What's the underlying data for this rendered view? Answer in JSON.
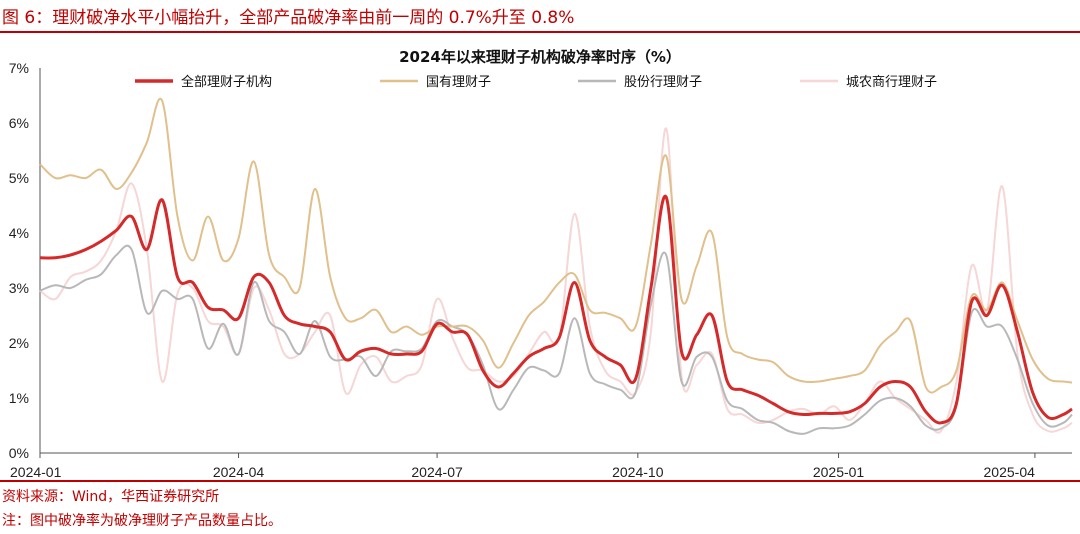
{
  "header": {
    "title": "图 6：理财破净水平小幅抬升，全部产品破净率由前一周的 0.7%升至 0.8%"
  },
  "footer": {
    "source": "资料来源：Wind，华西证券研究所",
    "note": "注：图中破净率为破净理财子产品数量占比。"
  },
  "colors": {
    "accent": "#c00000",
    "all": "#d42a2a",
    "state": "#e0c08c",
    "joint": "#b8b8b8",
    "rural": "#f6d6d6"
  },
  "chart_data": {
    "type": "line",
    "title": "2024年以来理财子机构破净率时序（%）",
    "ylabel": "",
    "xlabel": "",
    "ylim": [
      0,
      7
    ],
    "y_ticks": [
      "0%",
      "1%",
      "2%",
      "3%",
      "4%",
      "5%",
      "6%",
      "7%"
    ],
    "x_ticks": [
      "2024-01",
      "2024-04",
      "2024-07",
      "2024-10",
      "2025-01",
      "2025-04"
    ],
    "xlim": [
      "2024-01-01",
      "2025-04-18"
    ],
    "grid": false,
    "legend_position": "top",
    "series": [
      {
        "name": "全部理财子机构",
        "color": "#d42a2a",
        "points": [
          [
            "2024-01-01",
            3.55
          ],
          [
            "2024-01-08",
            3.55
          ],
          [
            "2024-01-15",
            3.6
          ],
          [
            "2024-01-22",
            3.7
          ],
          [
            "2024-01-29",
            3.85
          ],
          [
            "2024-02-05",
            4.05
          ],
          [
            "2024-02-12",
            4.3
          ],
          [
            "2024-02-19",
            3.7
          ],
          [
            "2024-02-26",
            4.6
          ],
          [
            "2024-03-04",
            3.2
          ],
          [
            "2024-03-11",
            3.1
          ],
          [
            "2024-03-18",
            2.65
          ],
          [
            "2024-03-25",
            2.6
          ],
          [
            "2024-04-01",
            2.45
          ],
          [
            "2024-04-08",
            3.2
          ],
          [
            "2024-04-15",
            3.1
          ],
          [
            "2024-04-22",
            2.5
          ],
          [
            "2024-04-29",
            2.35
          ],
          [
            "2024-05-06",
            2.3
          ],
          [
            "2024-05-13",
            2.2
          ],
          [
            "2024-05-20",
            1.7
          ],
          [
            "2024-05-27",
            1.85
          ],
          [
            "2024-06-03",
            1.9
          ],
          [
            "2024-06-10",
            1.8
          ],
          [
            "2024-06-17",
            1.8
          ],
          [
            "2024-06-24",
            1.85
          ],
          [
            "2024-07-01",
            2.35
          ],
          [
            "2024-07-08",
            2.2
          ],
          [
            "2024-07-15",
            2.15
          ],
          [
            "2024-07-22",
            1.5
          ],
          [
            "2024-07-29",
            1.2
          ],
          [
            "2024-08-05",
            1.45
          ],
          [
            "2024-08-12",
            1.75
          ],
          [
            "2024-08-19",
            1.9
          ],
          [
            "2024-08-26",
            2.1
          ],
          [
            "2024-09-02",
            3.1
          ],
          [
            "2024-09-09",
            2.05
          ],
          [
            "2024-09-16",
            1.75
          ],
          [
            "2024-09-23",
            1.6
          ],
          [
            "2024-09-30",
            1.35
          ],
          [
            "2024-10-07",
            3.0
          ],
          [
            "2024-10-14",
            4.65
          ],
          [
            "2024-10-21",
            1.85
          ],
          [
            "2024-10-28",
            2.15
          ],
          [
            "2024-11-04",
            2.5
          ],
          [
            "2024-11-11",
            1.3
          ],
          [
            "2024-11-18",
            1.15
          ],
          [
            "2024-11-25",
            1.05
          ],
          [
            "2024-12-02",
            0.9
          ],
          [
            "2024-12-09",
            0.75
          ],
          [
            "2024-12-16",
            0.7
          ],
          [
            "2024-12-23",
            0.72
          ],
          [
            "2024-12-30",
            0.72
          ],
          [
            "2025-01-06",
            0.75
          ],
          [
            "2025-01-13",
            0.9
          ],
          [
            "2025-01-20",
            1.2
          ],
          [
            "2025-01-27",
            1.3
          ],
          [
            "2025-02-03",
            1.2
          ],
          [
            "2025-02-10",
            0.75
          ],
          [
            "2025-02-17",
            0.55
          ],
          [
            "2025-02-24",
            0.9
          ],
          [
            "2025-03-03",
            2.75
          ],
          [
            "2025-03-10",
            2.5
          ],
          [
            "2025-03-17",
            3.05
          ],
          [
            "2025-03-24",
            2.2
          ],
          [
            "2025-03-31",
            1.1
          ],
          [
            "2025-04-07",
            0.65
          ],
          [
            "2025-04-14",
            0.7
          ],
          [
            "2025-04-18",
            0.8
          ]
        ]
      },
      {
        "name": "国有理财子",
        "color": "#e0c08c",
        "points": [
          [
            "2024-01-01",
            5.25
          ],
          [
            "2024-01-08",
            5.0
          ],
          [
            "2024-01-15",
            5.05
          ],
          [
            "2024-01-22",
            5.0
          ],
          [
            "2024-01-29",
            5.15
          ],
          [
            "2024-02-05",
            4.8
          ],
          [
            "2024-02-12",
            5.1
          ],
          [
            "2024-02-19",
            5.65
          ],
          [
            "2024-02-26",
            6.4
          ],
          [
            "2024-03-04",
            4.3
          ],
          [
            "2024-03-11",
            3.5
          ],
          [
            "2024-03-18",
            4.3
          ],
          [
            "2024-03-25",
            3.5
          ],
          [
            "2024-04-01",
            3.9
          ],
          [
            "2024-04-08",
            5.3
          ],
          [
            "2024-04-15",
            3.6
          ],
          [
            "2024-04-22",
            3.2
          ],
          [
            "2024-04-29",
            3.0
          ],
          [
            "2024-05-06",
            4.8
          ],
          [
            "2024-05-13",
            3.2
          ],
          [
            "2024-05-20",
            2.45
          ],
          [
            "2024-05-27",
            2.45
          ],
          [
            "2024-06-03",
            2.6
          ],
          [
            "2024-06-10",
            2.2
          ],
          [
            "2024-06-17",
            2.3
          ],
          [
            "2024-06-24",
            2.15
          ],
          [
            "2024-07-01",
            2.3
          ],
          [
            "2024-07-08",
            2.3
          ],
          [
            "2024-07-15",
            2.3
          ],
          [
            "2024-07-22",
            2.05
          ],
          [
            "2024-07-29",
            1.55
          ],
          [
            "2024-08-05",
            2.0
          ],
          [
            "2024-08-12",
            2.5
          ],
          [
            "2024-08-19",
            2.75
          ],
          [
            "2024-08-26",
            3.1
          ],
          [
            "2024-09-02",
            3.25
          ],
          [
            "2024-09-09",
            2.6
          ],
          [
            "2024-09-16",
            2.55
          ],
          [
            "2024-09-23",
            2.45
          ],
          [
            "2024-09-30",
            2.3
          ],
          [
            "2024-10-07",
            3.8
          ],
          [
            "2024-10-14",
            5.4
          ],
          [
            "2024-10-21",
            2.8
          ],
          [
            "2024-10-28",
            3.4
          ],
          [
            "2024-11-04",
            4.0
          ],
          [
            "2024-11-11",
            2.1
          ],
          [
            "2024-11-18",
            1.8
          ],
          [
            "2024-11-25",
            1.7
          ],
          [
            "2024-12-02",
            1.65
          ],
          [
            "2024-12-09",
            1.4
          ],
          [
            "2024-12-16",
            1.3
          ],
          [
            "2024-12-23",
            1.3
          ],
          [
            "2024-12-30",
            1.35
          ],
          [
            "2025-01-06",
            1.4
          ],
          [
            "2025-01-13",
            1.5
          ],
          [
            "2025-01-20",
            1.95
          ],
          [
            "2025-01-27",
            2.2
          ],
          [
            "2025-02-03",
            2.4
          ],
          [
            "2025-02-10",
            1.2
          ],
          [
            "2025-02-17",
            1.2
          ],
          [
            "2025-02-24",
            1.5
          ],
          [
            "2025-03-03",
            2.85
          ],
          [
            "2025-03-10",
            2.6
          ],
          [
            "2025-03-17",
            3.1
          ],
          [
            "2025-03-24",
            2.4
          ],
          [
            "2025-03-31",
            1.7
          ],
          [
            "2025-04-07",
            1.35
          ],
          [
            "2025-04-14",
            1.3
          ],
          [
            "2025-04-18",
            1.28
          ]
        ]
      },
      {
        "name": "股份行理财子",
        "color": "#b8b8b8",
        "points": [
          [
            "2024-01-01",
            2.95
          ],
          [
            "2024-01-08",
            3.05
          ],
          [
            "2024-01-15",
            3.0
          ],
          [
            "2024-01-22",
            3.15
          ],
          [
            "2024-01-29",
            3.25
          ],
          [
            "2024-02-05",
            3.6
          ],
          [
            "2024-02-12",
            3.7
          ],
          [
            "2024-02-19",
            2.55
          ],
          [
            "2024-02-26",
            2.95
          ],
          [
            "2024-03-04",
            2.8
          ],
          [
            "2024-03-11",
            2.8
          ],
          [
            "2024-03-18",
            1.9
          ],
          [
            "2024-03-25",
            2.35
          ],
          [
            "2024-04-01",
            1.8
          ],
          [
            "2024-04-08",
            3.1
          ],
          [
            "2024-04-15",
            2.4
          ],
          [
            "2024-04-22",
            2.2
          ],
          [
            "2024-04-29",
            1.8
          ],
          [
            "2024-05-06",
            2.4
          ],
          [
            "2024-05-13",
            1.75
          ],
          [
            "2024-05-20",
            1.7
          ],
          [
            "2024-05-27",
            1.75
          ],
          [
            "2024-06-03",
            1.4
          ],
          [
            "2024-06-10",
            1.85
          ],
          [
            "2024-06-17",
            1.85
          ],
          [
            "2024-06-24",
            1.9
          ],
          [
            "2024-07-01",
            2.4
          ],
          [
            "2024-07-08",
            2.3
          ],
          [
            "2024-07-15",
            2.15
          ],
          [
            "2024-07-22",
            1.6
          ],
          [
            "2024-07-29",
            0.8
          ],
          [
            "2024-08-05",
            1.15
          ],
          [
            "2024-08-12",
            1.55
          ],
          [
            "2024-08-19",
            1.5
          ],
          [
            "2024-08-26",
            1.45
          ],
          [
            "2024-09-02",
            2.45
          ],
          [
            "2024-09-09",
            1.45
          ],
          [
            "2024-09-16",
            1.25
          ],
          [
            "2024-09-23",
            1.15
          ],
          [
            "2024-09-30",
            1.1
          ],
          [
            "2024-10-07",
            2.7
          ],
          [
            "2024-10-14",
            3.6
          ],
          [
            "2024-10-21",
            1.3
          ],
          [
            "2024-10-28",
            1.75
          ],
          [
            "2024-11-04",
            1.75
          ],
          [
            "2024-11-11",
            0.95
          ],
          [
            "2024-11-18",
            0.8
          ],
          [
            "2024-11-25",
            0.6
          ],
          [
            "2024-12-02",
            0.55
          ],
          [
            "2024-12-09",
            0.4
          ],
          [
            "2024-12-16",
            0.35
          ],
          [
            "2024-12-23",
            0.45
          ],
          [
            "2024-12-30",
            0.45
          ],
          [
            "2025-01-06",
            0.5
          ],
          [
            "2025-01-13",
            0.7
          ],
          [
            "2025-01-20",
            0.95
          ],
          [
            "2025-01-27",
            1.0
          ],
          [
            "2025-02-03",
            0.85
          ],
          [
            "2025-02-10",
            0.5
          ],
          [
            "2025-02-17",
            0.45
          ],
          [
            "2025-02-24",
            0.85
          ],
          [
            "2025-03-03",
            2.55
          ],
          [
            "2025-03-10",
            2.3
          ],
          [
            "2025-03-17",
            2.3
          ],
          [
            "2025-03-24",
            1.7
          ],
          [
            "2025-03-31",
            0.9
          ],
          [
            "2025-04-07",
            0.5
          ],
          [
            "2025-04-14",
            0.55
          ],
          [
            "2025-04-18",
            0.7
          ]
        ]
      },
      {
        "name": "城农商行理财子",
        "color": "#f6d6d6",
        "points": [
          [
            "2024-01-01",
            2.95
          ],
          [
            "2024-01-08",
            2.8
          ],
          [
            "2024-01-15",
            3.2
          ],
          [
            "2024-01-22",
            3.3
          ],
          [
            "2024-01-29",
            3.5
          ],
          [
            "2024-02-05",
            4.05
          ],
          [
            "2024-02-12",
            4.9
          ],
          [
            "2024-02-19",
            3.7
          ],
          [
            "2024-02-26",
            1.3
          ],
          [
            "2024-03-04",
            2.9
          ],
          [
            "2024-03-11",
            3.0
          ],
          [
            "2024-03-18",
            2.4
          ],
          [
            "2024-03-25",
            2.3
          ],
          [
            "2024-04-01",
            1.8
          ],
          [
            "2024-04-08",
            3.0
          ],
          [
            "2024-04-15",
            2.6
          ],
          [
            "2024-04-22",
            1.8
          ],
          [
            "2024-04-29",
            1.8
          ],
          [
            "2024-05-06",
            2.2
          ],
          [
            "2024-05-13",
            2.5
          ],
          [
            "2024-05-20",
            1.1
          ],
          [
            "2024-05-27",
            1.6
          ],
          [
            "2024-06-03",
            1.75
          ],
          [
            "2024-06-10",
            1.3
          ],
          [
            "2024-06-17",
            1.4
          ],
          [
            "2024-06-24",
            1.6
          ],
          [
            "2024-07-01",
            2.8
          ],
          [
            "2024-07-08",
            2.1
          ],
          [
            "2024-07-15",
            1.55
          ],
          [
            "2024-07-22",
            1.5
          ],
          [
            "2024-07-29",
            1.3
          ],
          [
            "2024-08-05",
            1.4
          ],
          [
            "2024-08-12",
            1.8
          ],
          [
            "2024-08-19",
            2.2
          ],
          [
            "2024-08-26",
            2.1
          ],
          [
            "2024-09-02",
            4.35
          ],
          [
            "2024-09-09",
            2.3
          ],
          [
            "2024-09-16",
            1.5
          ],
          [
            "2024-09-23",
            1.3
          ],
          [
            "2024-09-30",
            1.1
          ],
          [
            "2024-10-07",
            2.2
          ],
          [
            "2024-10-14",
            5.9
          ],
          [
            "2024-10-21",
            1.4
          ],
          [
            "2024-10-28",
            1.6
          ],
          [
            "2024-11-04",
            1.8
          ],
          [
            "2024-11-11",
            0.8
          ],
          [
            "2024-11-18",
            0.7
          ],
          [
            "2024-11-25",
            0.55
          ],
          [
            "2024-12-02",
            0.6
          ],
          [
            "2024-12-09",
            0.75
          ],
          [
            "2024-12-16",
            0.8
          ],
          [
            "2024-12-23",
            0.7
          ],
          [
            "2024-12-30",
            0.85
          ],
          [
            "2025-01-06",
            0.6
          ],
          [
            "2025-01-13",
            0.9
          ],
          [
            "2025-01-20",
            1.3
          ],
          [
            "2025-01-27",
            1.0
          ],
          [
            "2025-02-03",
            0.8
          ],
          [
            "2025-02-10",
            0.6
          ],
          [
            "2025-02-17",
            0.4
          ],
          [
            "2025-02-24",
            1.3
          ],
          [
            "2025-03-03",
            3.4
          ],
          [
            "2025-03-10",
            2.6
          ],
          [
            "2025-03-17",
            4.85
          ],
          [
            "2025-03-24",
            1.8
          ],
          [
            "2025-03-31",
            0.7
          ],
          [
            "2025-04-07",
            0.4
          ],
          [
            "2025-04-14",
            0.45
          ],
          [
            "2025-04-18",
            0.55
          ]
        ]
      }
    ]
  }
}
